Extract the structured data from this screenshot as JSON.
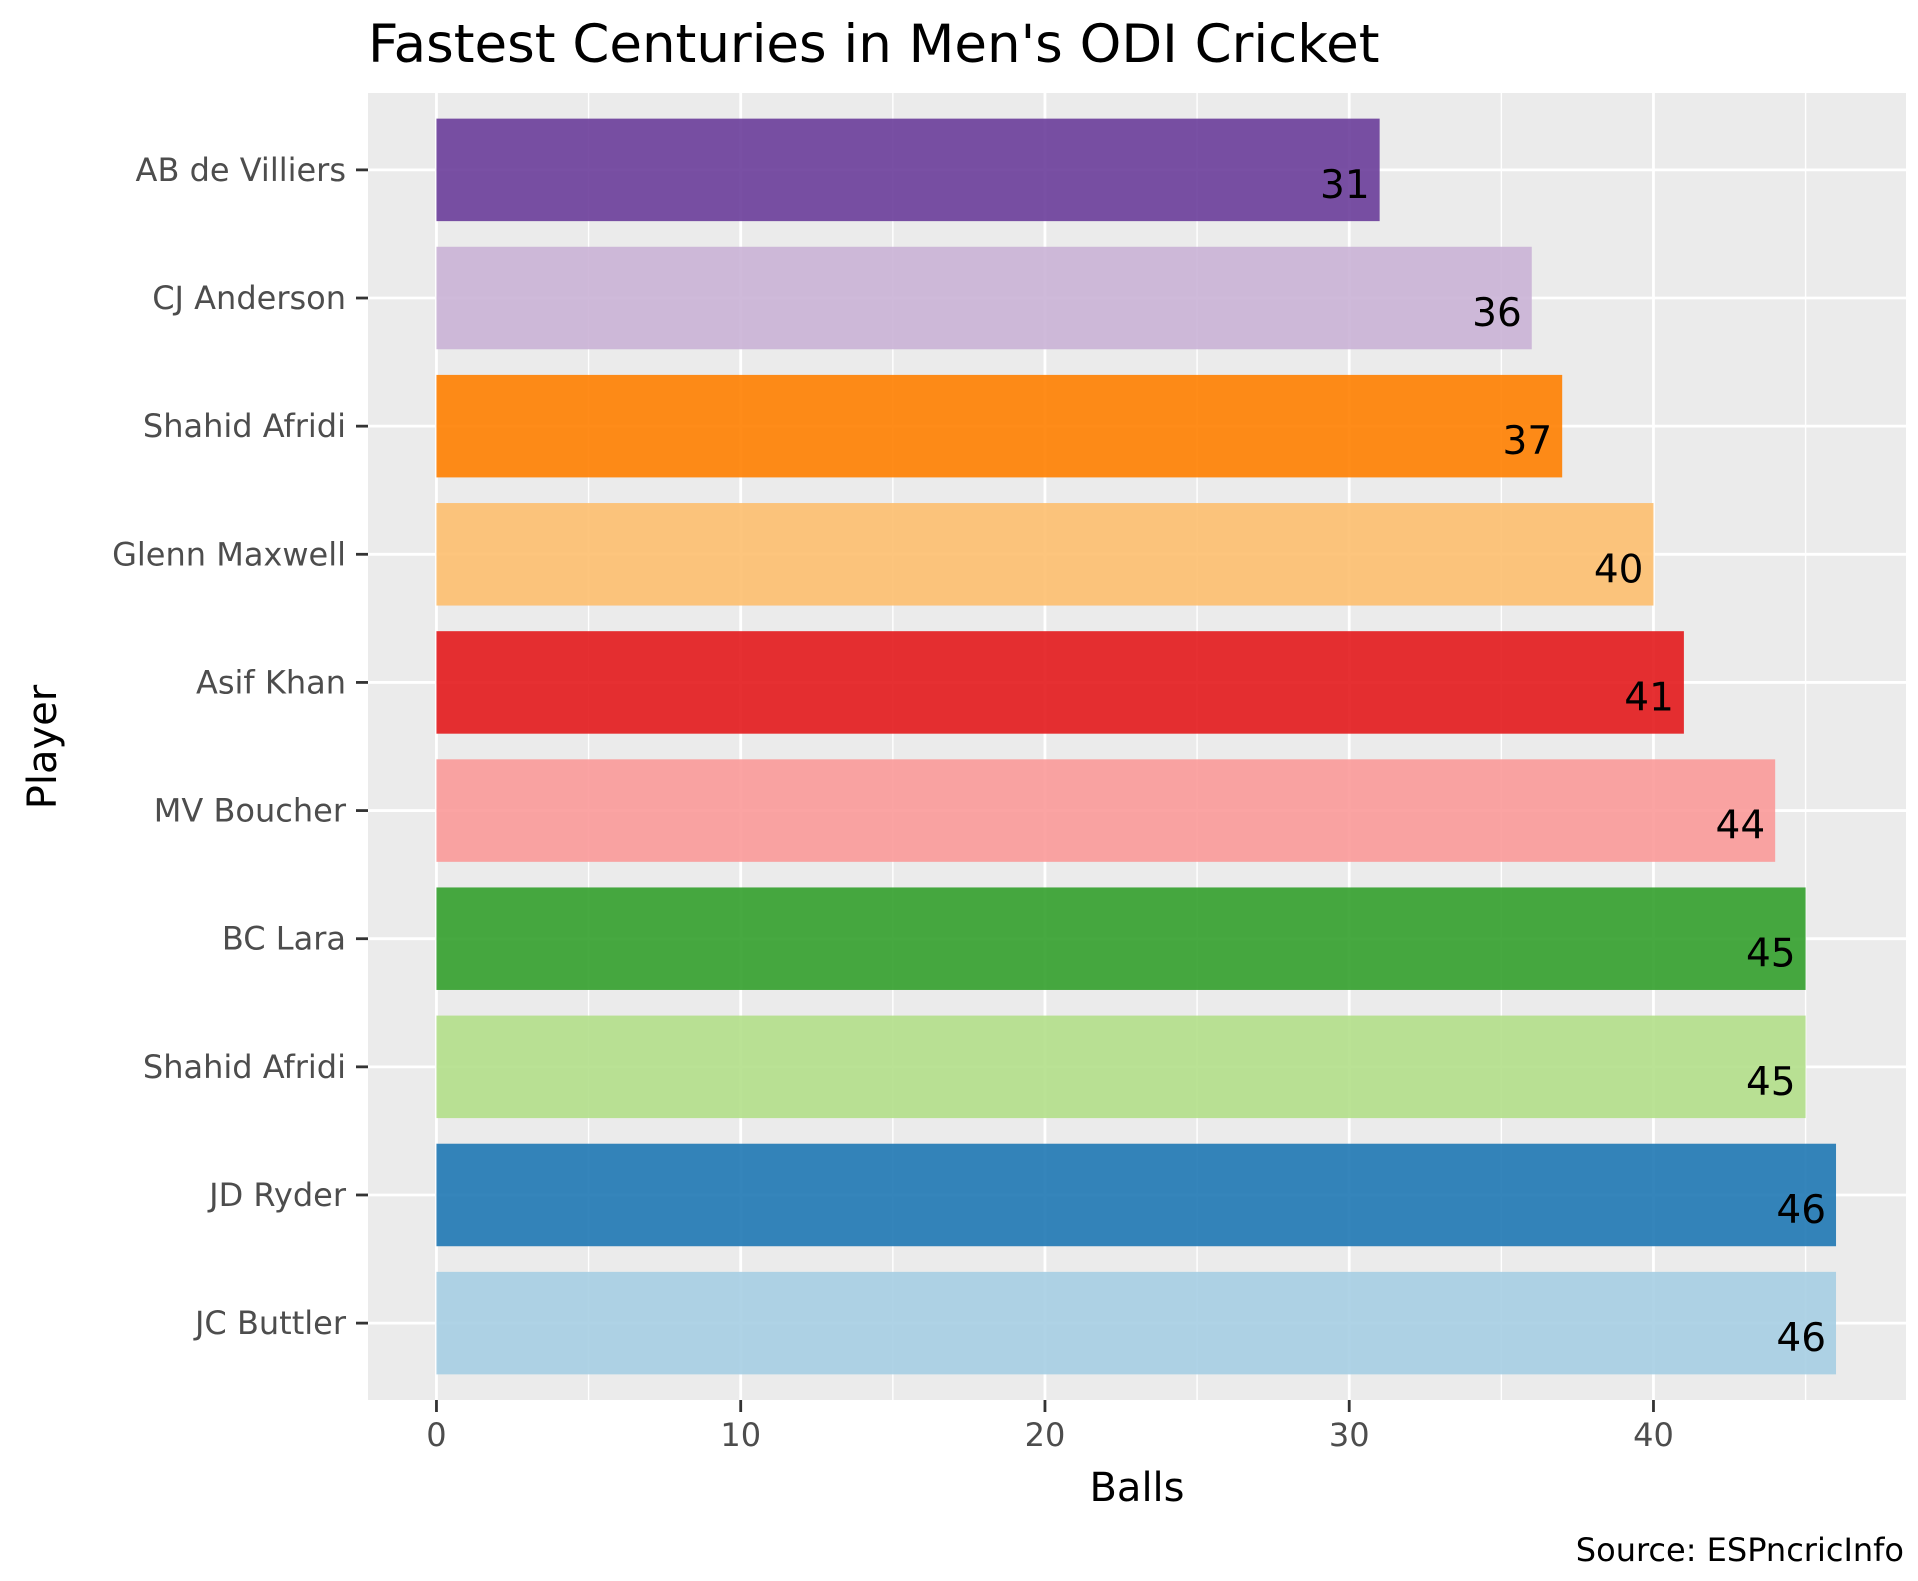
{
  "chart_data": {
    "type": "bar",
    "orientation": "horizontal",
    "title": "Fastest Centuries in Men's ODI Cricket",
    "xlabel": "Balls",
    "ylabel": "Player",
    "caption": "Source: ESPncricInfo",
    "xlim": [
      -2.25,
      48.3
    ],
    "xticks": [
      0,
      10,
      20,
      30,
      40
    ],
    "grid": true,
    "legend": "none",
    "panel_background": "#ebebeb",
    "categories": [
      "AB de Villiers",
      "CJ Anderson",
      "Shahid Afridi",
      "Glenn Maxwell",
      "Asif Khan",
      "MV Boucher",
      "BC Lara",
      "Shahid Afridi",
      "JD Ryder",
      "JC Buttler"
    ],
    "values": [
      31,
      36,
      37,
      40,
      41,
      44,
      45,
      45,
      46,
      46
    ],
    "value_labels": [
      "31",
      "36",
      "37",
      "40",
      "41",
      "44",
      "45",
      "45",
      "46",
      "46"
    ],
    "colors": [
      "#6a3d9a",
      "#cab2d6",
      "#ff7f00",
      "#fdbf6f",
      "#e31a1c",
      "#fb9a99",
      "#33a02c",
      "#b2df8a",
      "#1f78b4",
      "#a6cee3"
    ]
  }
}
